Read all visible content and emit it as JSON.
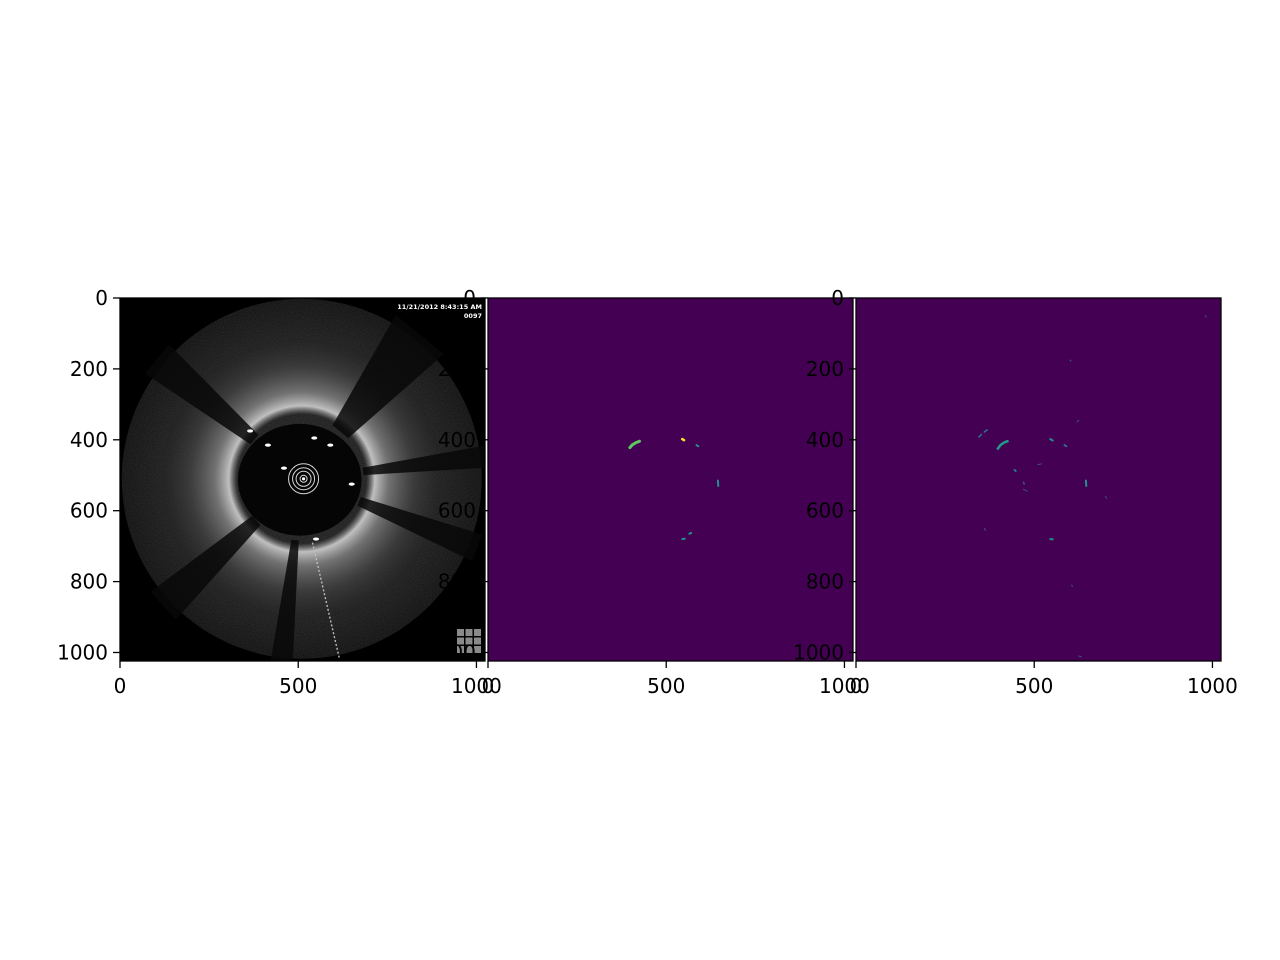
{
  "figure": {
    "background": "#ffffff",
    "axis_color": "#000000",
    "viridis_low": "#440154",
    "viridis_mid": "#21918c",
    "viridis_high": "#5ec962",
    "viridis_top": "#fde725"
  },
  "chart_data": [
    {
      "type": "image",
      "colormap": "gray",
      "xlim": [
        0,
        1024
      ],
      "ylim": [
        1024,
        0
      ],
      "x_ticks": [
        0,
        500,
        1000
      ],
      "y_ticks": [
        0,
        200,
        400,
        600,
        800,
        1000
      ],
      "x_tick_labels": [
        "0",
        "500",
        "1000"
      ],
      "y_tick_labels": [
        "0",
        "200",
        "400",
        "600",
        "800",
        "1000"
      ],
      "overlay_text": {
        "timestamp": "11/21/2012 8:43:15 AM",
        "frame": "0097"
      },
      "content": "intravascular OCT cross-section",
      "struts": [
        [
          365,
          375
        ],
        [
          415,
          415
        ],
        [
          545,
          395
        ],
        [
          590,
          415
        ],
        [
          650,
          525
        ],
        [
          550,
          680
        ],
        [
          460,
          480
        ]
      ],
      "lumen_center": [
        510,
        510
      ],
      "catheter_center": [
        515,
        510
      ]
    },
    {
      "type": "image",
      "colormap": "viridis",
      "xlim": [
        0,
        1024
      ],
      "ylim": [
        1024,
        0
      ],
      "x_ticks": [
        0,
        500,
        1000
      ],
      "y_ticks": [
        0,
        200,
        400,
        600,
        800,
        1000
      ],
      "x_tick_labels": [
        "0",
        "500",
        "1000"
      ],
      "y_tick_labels": [
        "0",
        "200",
        "400",
        "600",
        "800",
        "1000"
      ],
      "segments": [
        {
          "points": [
            [
              398,
              422
            ],
            [
              405,
              414
            ],
            [
              415,
              408
            ],
            [
              425,
              404
            ]
          ],
          "color": "#5ec962",
          "width": 6
        },
        {
          "points": [
            [
              545,
              398
            ],
            [
              550,
              401
            ]
          ],
          "color": "#fde725",
          "width": 5
        },
        {
          "points": [
            [
              585,
              415
            ],
            [
              590,
              418
            ]
          ],
          "color": "#21918c",
          "width": 4
        },
        {
          "points": [
            [
              645,
              515
            ],
            [
              646,
              530
            ]
          ],
          "color": "#21918c",
          "width": 4
        },
        {
          "points": [
            [
              545,
              680
            ],
            [
              552,
              679
            ]
          ],
          "color": "#21918c",
          "width": 4
        },
        {
          "points": [
            [
              565,
              665
            ],
            [
              570,
              663
            ]
          ],
          "color": "#21918c",
          "width": 4
        }
      ]
    },
    {
      "type": "image",
      "colormap": "viridis",
      "xlim": [
        0,
        1024
      ],
      "ylim": [
        1024,
        0
      ],
      "x_ticks": [
        0,
        500,
        1000
      ],
      "y_ticks": [
        0,
        200,
        400,
        600,
        800,
        1000
      ],
      "x_tick_labels": [
        "0",
        "500",
        "1000"
      ],
      "y_tick_labels": [
        "0",
        "200",
        "400",
        "600",
        "800",
        "1000"
      ],
      "segments": [
        {
          "points": [
            [
              398,
              425
            ],
            [
              405,
              415
            ],
            [
              415,
              408
            ],
            [
              425,
              404
            ]
          ],
          "color": "#1f9e89",
          "width": 5
        },
        {
          "points": [
            [
              345,
              392
            ],
            [
              352,
              385
            ]
          ],
          "color": "#2c728e",
          "width": 3
        },
        {
          "points": [
            [
              360,
              378
            ],
            [
              368,
              372
            ]
          ],
          "color": "#2c728e",
          "width": 3
        },
        {
          "points": [
            [
              545,
              398
            ],
            [
              552,
              402
            ]
          ],
          "color": "#21918c",
          "width": 4
        },
        {
          "points": [
            [
              585,
              415
            ],
            [
              590,
              418
            ]
          ],
          "color": "#2c728e",
          "width": 4
        },
        {
          "points": [
            [
              645,
              515
            ],
            [
              646,
              530
            ]
          ],
          "color": "#21918c",
          "width": 4
        },
        {
          "points": [
            [
              545,
              680
            ],
            [
              552,
              681
            ]
          ],
          "color": "#21918c",
          "width": 4
        },
        {
          "points": [
            [
              445,
              485
            ],
            [
              448,
              488
            ]
          ],
          "color": "#2c728e",
          "width": 4
        },
        {
          "points": [
            [
              470,
              520
            ],
            [
              472,
              525
            ]
          ],
          "color": "#3b528b",
          "width": 3
        },
        {
          "points": [
            [
              510,
              470
            ],
            [
              520,
              468
            ]
          ],
          "color": "#3b528b",
          "width": 2
        },
        {
          "points": [
            [
              470,
              540
            ],
            [
              480,
              545
            ]
          ],
          "color": "#3b528b",
          "width": 2
        },
        {
          "points": [
            [
              605,
              810
            ],
            [
              607,
              814
            ]
          ],
          "color": "#3b528b",
          "width": 2
        },
        {
          "points": [
            [
              980,
              50
            ],
            [
              983,
              54
            ]
          ],
          "color": "#3b528b",
          "width": 2
        },
        {
          "points": [
            [
              620,
              350
            ],
            [
              625,
              345
            ]
          ],
          "color": "#3b528b",
          "width": 2
        },
        {
          "points": [
            [
              600,
              175
            ],
            [
              603,
              178
            ]
          ],
          "color": "#3b528b",
          "width": 2
        },
        {
          "points": [
            [
              625,
              1010
            ],
            [
              632,
              1012
            ]
          ],
          "color": "#3b528b",
          "width": 2
        },
        {
          "points": [
            [
              360,
              650
            ],
            [
              363,
              655
            ]
          ],
          "color": "#3b528b",
          "width": 2
        },
        {
          "points": [
            [
              700,
              560
            ],
            [
              703,
              565
            ]
          ],
          "color": "#3b528b",
          "width": 2
        }
      ]
    }
  ]
}
